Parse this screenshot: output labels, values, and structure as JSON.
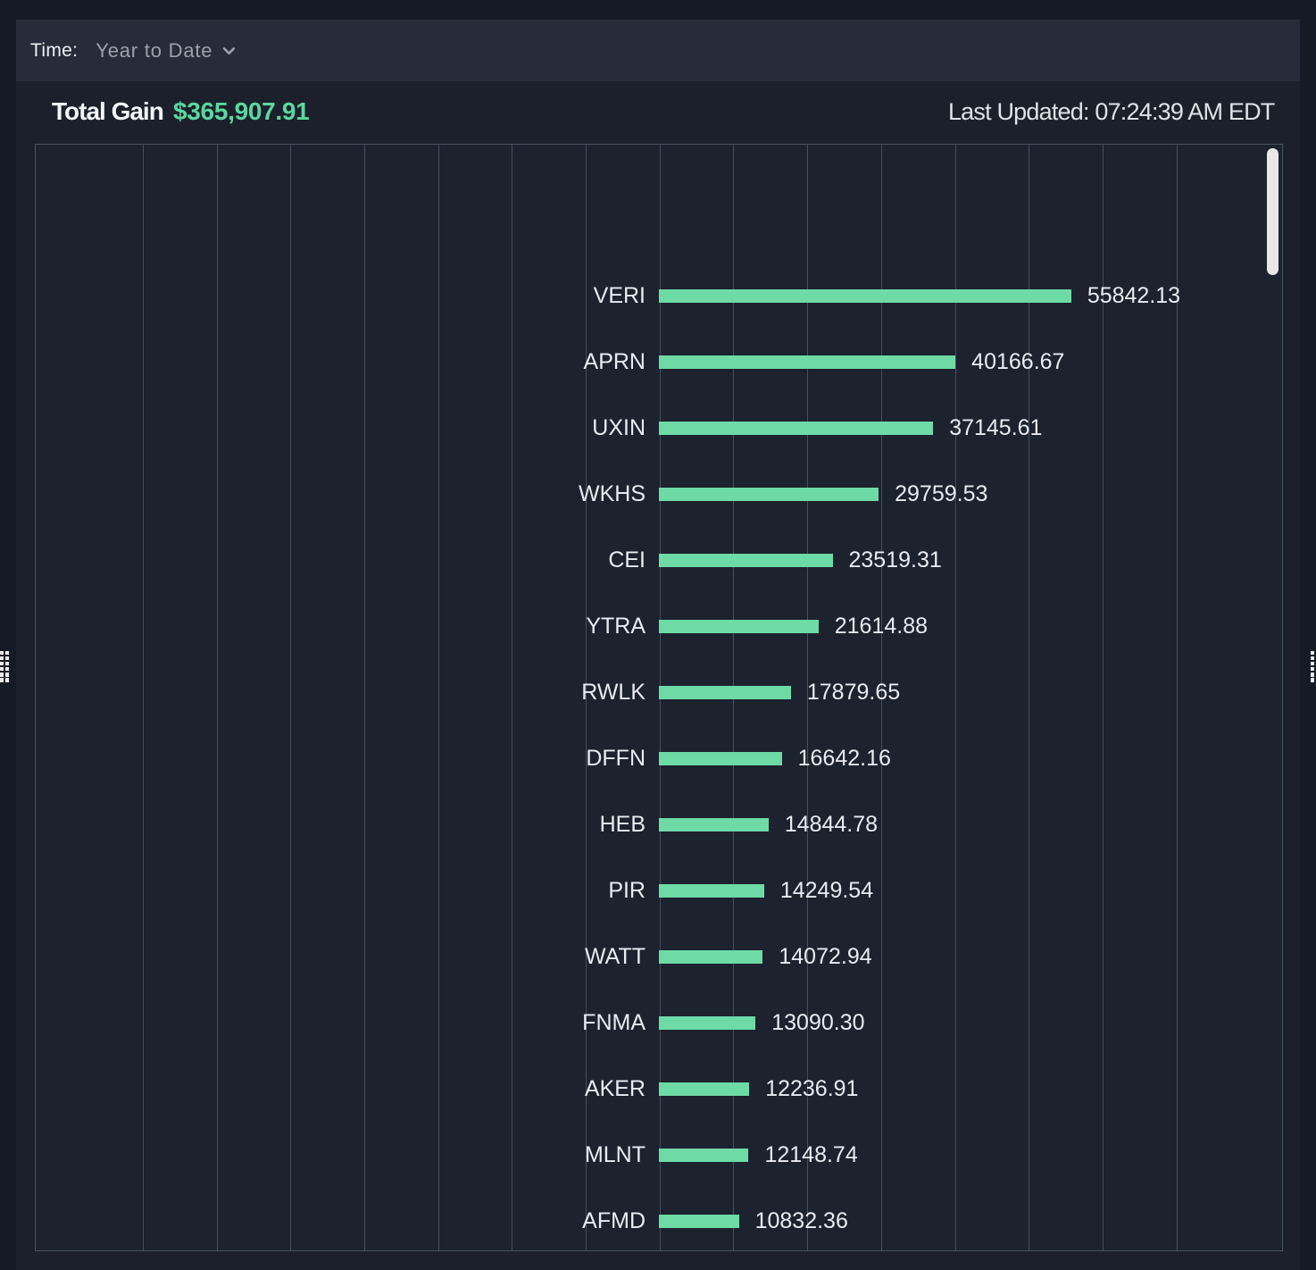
{
  "header": {
    "time_label": "Time:",
    "range_value": "Year to Date",
    "dropdown_icon": "chevron-down-icon"
  },
  "stats": {
    "total_gain_label": "Total Gain",
    "total_gain_value": "$365,907.91",
    "last_updated": "Last Updated: 07:24:39 AM EDT"
  },
  "colors": {
    "bar": "#6EDBA7",
    "total_gain": "#5BD7A0",
    "page_background": "#161A24",
    "widget_background": "#1B202B",
    "header_background": "#262C39",
    "chart_background": "#1C222E",
    "gridline": "#454F60"
  },
  "chart_data": {
    "type": "bar",
    "orientation": "horizontal",
    "title": "",
    "xlabel": "",
    "ylabel": "",
    "categories": [
      "VERI",
      "APRN",
      "UXIN",
      "WKHS",
      "CEI",
      "YTRA",
      "RWLK",
      "DFFN",
      "HEB",
      "PIR",
      "WATT",
      "FNMA",
      "AKER",
      "MLNT",
      "AFMD"
    ],
    "values": [
      55842.13,
      40166.67,
      37145.61,
      29759.53,
      23519.31,
      21614.88,
      17879.65,
      16642.16,
      14844.78,
      14249.54,
      14072.94,
      13090.3,
      12236.91,
      12148.74,
      10832.36
    ],
    "value_label_position": "end",
    "baseline_value": 0,
    "x_gridline_interval": 10000,
    "grid": true,
    "legend": false
  }
}
